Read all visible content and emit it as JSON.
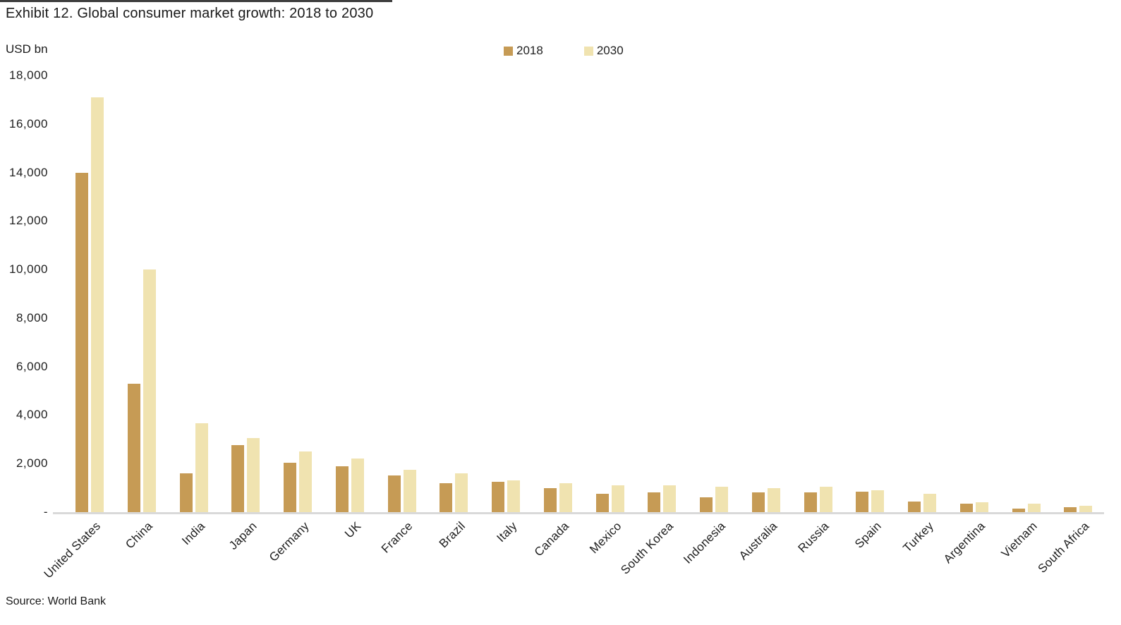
{
  "page": {
    "source_note": "Source: World Bank"
  },
  "colors": {
    "series_2018": "#C69B55",
    "series_2030": "#F0E3B0",
    "axis_line": "#D9D9D9",
    "text": "#1F1F1F"
  },
  "chart_data": {
    "type": "bar",
    "title": "Exhibit 12. Global consumer market growth: 2018 to 2030",
    "unit_label": "USD bn",
    "xlabel": "",
    "ylabel": "USD bn",
    "ylim": [
      0,
      18000
    ],
    "ytick_interval": 2000,
    "zero_tick_label": "-",
    "grid": false,
    "legend_position": "top-center",
    "categories": [
      "United States",
      "China",
      "India",
      "Japan",
      "Germany",
      "UK",
      "France",
      "Brazil",
      "Italy",
      "Canada",
      "Mexico",
      "South Korea",
      "Indonesia",
      "Australia",
      "Russia",
      "Spain",
      "Turkey",
      "Argentina",
      "Vietnam",
      "South Africa"
    ],
    "series": [
      {
        "name": "2018",
        "color": "#C69B55",
        "values": [
          14000,
          5300,
          1600,
          2750,
          2050,
          1900,
          1500,
          1200,
          1250,
          1000,
          750,
          800,
          600,
          800,
          800,
          850,
          450,
          350,
          150,
          200
        ]
      },
      {
        "name": "2030",
        "color": "#F0E3B0",
        "values": [
          17100,
          10000,
          3650,
          3050,
          2500,
          2200,
          1750,
          1600,
          1300,
          1200,
          1100,
          1100,
          1050,
          1000,
          1050,
          900,
          750,
          400,
          350,
          250
        ]
      }
    ]
  }
}
